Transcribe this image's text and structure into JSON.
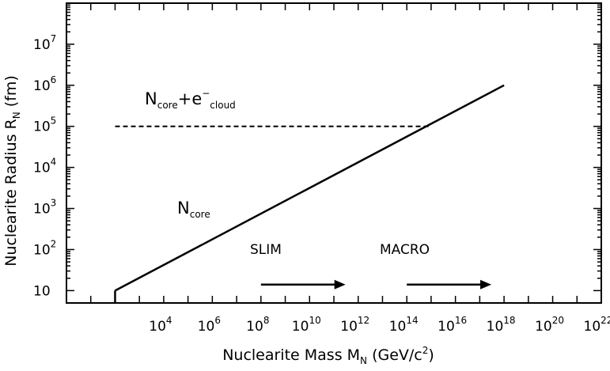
{
  "chart_data": {
    "type": "line",
    "xlabel": "Nuclearite Mass M",
    "xlabel_sub": "N",
    "xlabel_unit_open": " (GeV/c",
    "xlabel_unit_sup": "2",
    "xlabel_unit_close": ")",
    "ylabel": "Nuclearite Radius R",
    "ylabel_sub": "N",
    "ylabel_unit": " (fm)",
    "x_scale": "log",
    "y_scale": "log",
    "xlim": [
      1.0,
      1e+22
    ],
    "ylim": [
      5.0,
      100000000.0
    ],
    "grid": false,
    "x_ticks": [
      {
        "value": 10000.0,
        "base": "10",
        "exp": "4"
      },
      {
        "value": 1000000.0,
        "base": "10",
        "exp": "6"
      },
      {
        "value": 100000000.0,
        "base": "10",
        "exp": "8"
      },
      {
        "value": 10000000000.0,
        "base": "10",
        "exp": "10"
      },
      {
        "value": 1000000000000.0,
        "base": "10",
        "exp": "12"
      },
      {
        "value": 100000000000000.0,
        "base": "10",
        "exp": "14"
      },
      {
        "value": 1e+16,
        "base": "10",
        "exp": "16"
      },
      {
        "value": 1e+18,
        "base": "10",
        "exp": "18"
      },
      {
        "value": 1e+20,
        "base": "10",
        "exp": "20"
      },
      {
        "value": 1e+22,
        "base": "10",
        "exp": "22"
      }
    ],
    "y_ticks": [
      {
        "value": 10,
        "base": "10",
        "exp": ""
      },
      {
        "value": 100,
        "base": "10",
        "exp": "2"
      },
      {
        "value": 1000,
        "base": "10",
        "exp": "3"
      },
      {
        "value": 10000,
        "base": "10",
        "exp": "4"
      },
      {
        "value": 100000,
        "base": "10",
        "exp": "5"
      },
      {
        "value": 1000000,
        "base": "10",
        "exp": "6"
      },
      {
        "value": 10000000,
        "base": "10",
        "exp": "7"
      }
    ],
    "series": [
      {
        "name": "N_core",
        "style": "solid",
        "x": [
          100,
          1e+18
        ],
        "y": [
          10,
          1000000
        ]
      },
      {
        "name": "N_core + e^- cloud",
        "style": "dashed",
        "x": [
          100,
          1000000000000000.0
        ],
        "y": [
          100000,
          100000
        ]
      }
    ],
    "annotations": {
      "ncore": {
        "text": "N",
        "sub": "core",
        "x": 300000.0,
        "y": 2000
      },
      "ncloud": {
        "text": "N",
        "sub1": "core",
        "plus": "+e",
        "sup": "−",
        "sub2": "cloud",
        "x": 1000000.0,
        "y": 190000
      },
      "slim": {
        "label": "SLIM",
        "x": 100000000.0,
        "y": 40,
        "arrow_from": 100000000.0,
        "arrow_to": 300000000000.0,
        "arrow_y": 14
      },
      "macro": {
        "label": "MACRO",
        "x": 100000000000000.0,
        "y": 40,
        "arrow_from": 100000000000000.0,
        "arrow_to": 3e+17,
        "arrow_y": 14
      }
    },
    "colors": {
      "line": "#000000",
      "background": "#ffffff"
    }
  }
}
